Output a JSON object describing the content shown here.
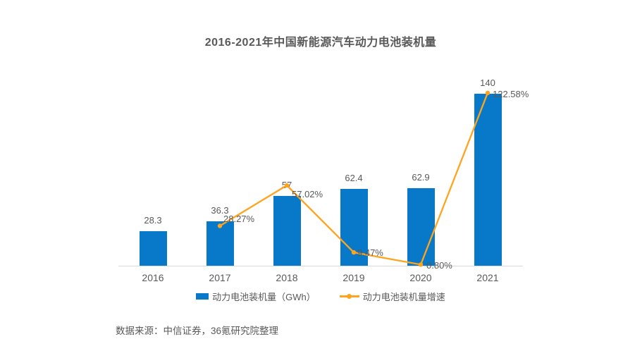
{
  "title": "2016-2021年中国新能源汽车动力电池装机量",
  "source_note": "数据来源：中信证券，36氪研究院整理",
  "colors": {
    "bar": "#0879C8",
    "line": "#FFA41E",
    "text": "#595959",
    "axis_line": "#D9D9D9",
    "background": "#FFFFFF"
  },
  "legend": [
    {
      "label": "动力电池装机量（GWh）",
      "marker": "bar-swatch"
    },
    {
      "label": "动力电池装机量增速",
      "marker": "line-marker"
    }
  ],
  "chart_data": {
    "type": "bar+line",
    "title": "2016-2021年中国新能源汽车动力电池装机量",
    "categories": [
      "2016",
      "2017",
      "2018",
      "2019",
      "2020",
      "2021"
    ],
    "series": [
      {
        "name": "动力电池装机量（GWh）",
        "type": "bar",
        "axis": "left",
        "unit": "GWh",
        "values": [
          28.3,
          36.3,
          57,
          62.4,
          62.9,
          140
        ],
        "data_labels": [
          "28.3",
          "36.3",
          "57",
          "62.4",
          "62.9",
          "140"
        ]
      },
      {
        "name": "动力电池装机量增速",
        "type": "line",
        "axis": "right",
        "unit": "%",
        "values": [
          null,
          28.27,
          57.02,
          9.47,
          0.8,
          122.58
        ],
        "data_labels": [
          null,
          "28.27%",
          "57.02%",
          "9.47%",
          "0.80%",
          "122.58%"
        ]
      }
    ],
    "left_axis": {
      "visible": false,
      "min": 0,
      "max": 140,
      "unit": "GWh"
    },
    "right_axis": {
      "visible": false,
      "min": 0,
      "max": 125,
      "unit": "%"
    },
    "gridlines": false,
    "legend_position": "bottom",
    "xlabel": "",
    "ylabel": ""
  }
}
